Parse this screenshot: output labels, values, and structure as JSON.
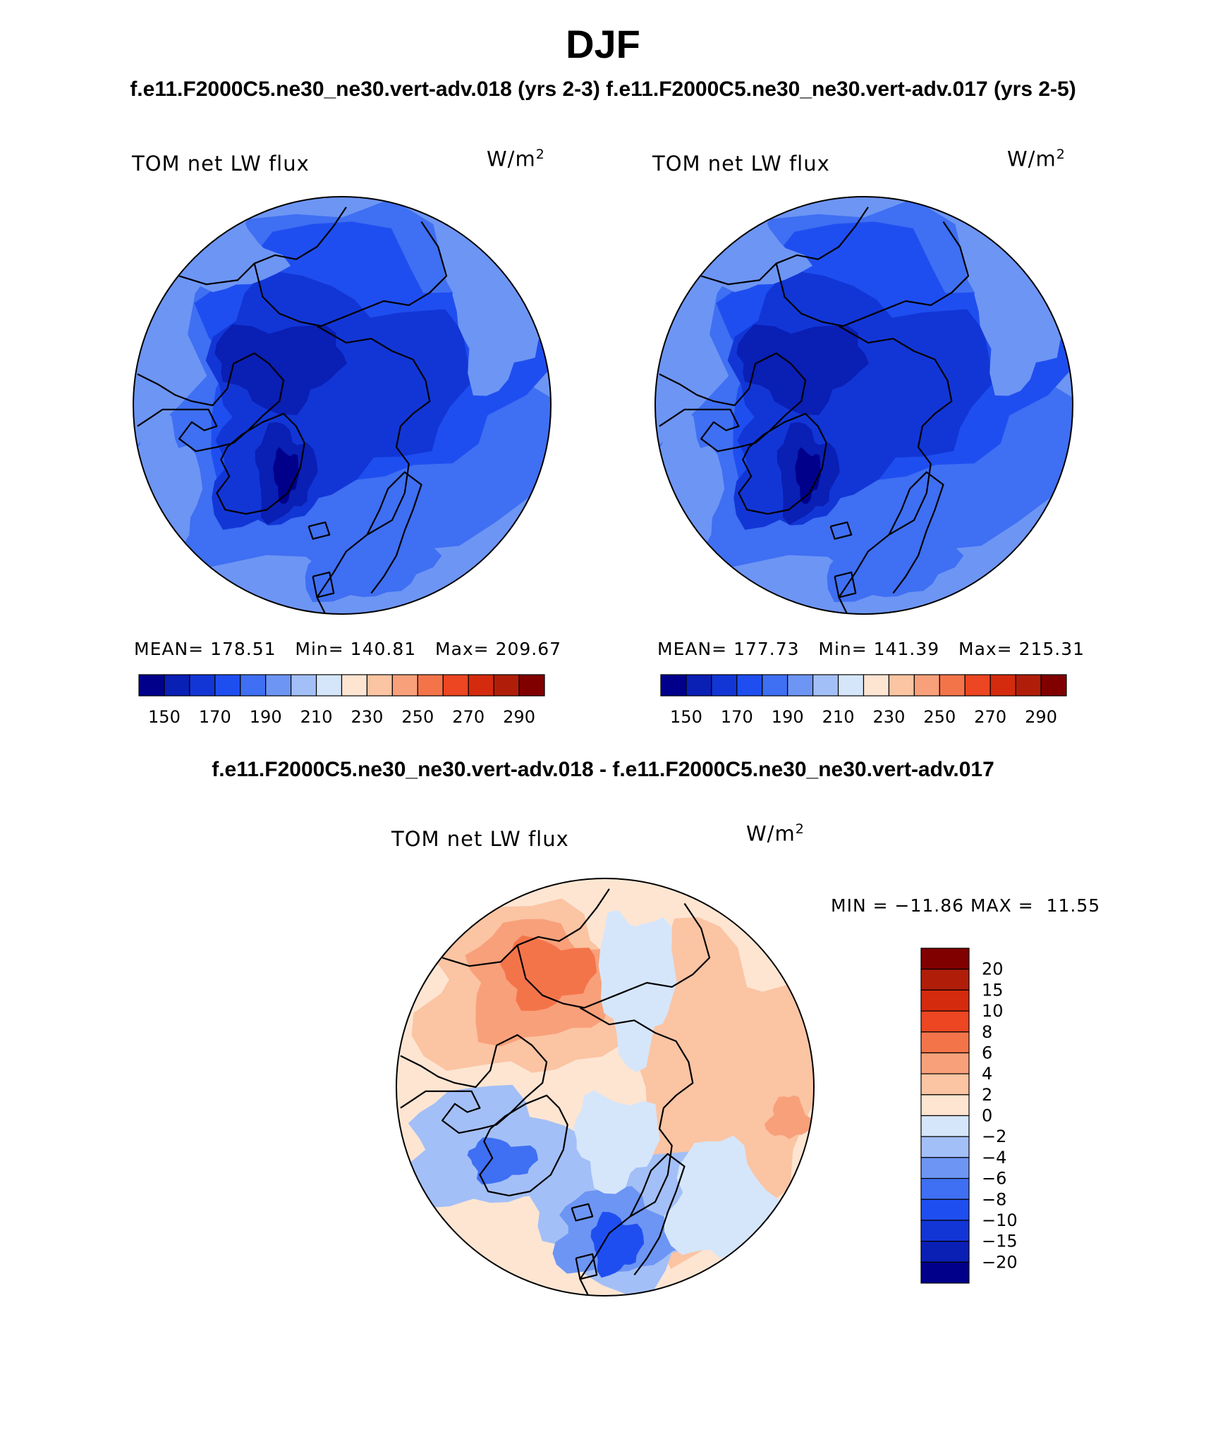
{
  "header": {
    "title": "DJF",
    "subtitle": "f.e11.F2000C5.ne30_ne30.vert-adv.018 (yrs 2-3) f.e11.F2000C5.ne30_ne30.vert-adv.017 (yrs 2-5)"
  },
  "panels": [
    {
      "variable": "TOM net LW flux",
      "units": "W/m",
      "units_sup": "2",
      "stats": {
        "mean_label": "MEAN=",
        "mean": "178.51",
        "min_label": "Min=",
        "min": "140.81",
        "max_label": "Max=",
        "max": "209.67"
      },
      "colorbar_ticks": [
        "150",
        "170",
        "190",
        "210",
        "230",
        "250",
        "270",
        "290"
      ]
    },
    {
      "variable": "TOM net LW flux",
      "units": "W/m",
      "units_sup": "2",
      "stats": {
        "mean_label": "MEAN=",
        "mean": "177.73",
        "min_label": "Min=",
        "min": "141.39",
        "max_label": "Max=",
        "max": "215.31"
      },
      "colorbar_ticks": [
        "150",
        "170",
        "190",
        "210",
        "230",
        "250",
        "270",
        "290"
      ]
    }
  ],
  "difference": {
    "title": "f.e11.F2000C5.ne30_ne30.vert-adv.018 - f.e11.F2000C5.ne30_ne30.vert-adv.017",
    "variable": "TOM net LW flux",
    "units": "W/m",
    "units_sup": "2",
    "min_label": "MIN =",
    "min": "−11.86",
    "max_label": "MAX =",
    "max": "11.55",
    "colorbar_ticks": [
      "20",
      "15",
      "10",
      "8",
      "6",
      "4",
      "2",
      "0",
      "−2",
      "−4",
      "−6",
      "−8",
      "−10",
      "−15",
      "−20"
    ]
  },
  "palette": [
    "#00008b",
    "#0a1fb4",
    "#1236d6",
    "#1f4ef0",
    "#3f6ff2",
    "#6d95f4",
    "#a3bff7",
    "#d5e6fb",
    "#fde5d2",
    "#fbc4a3",
    "#f8a07a",
    "#f4744a",
    "#ec4622",
    "#d42b0e",
    "#b01e0a",
    "#800000"
  ],
  "map_colors": {
    "land_stroke": "#000000",
    "border": "#000000"
  }
}
